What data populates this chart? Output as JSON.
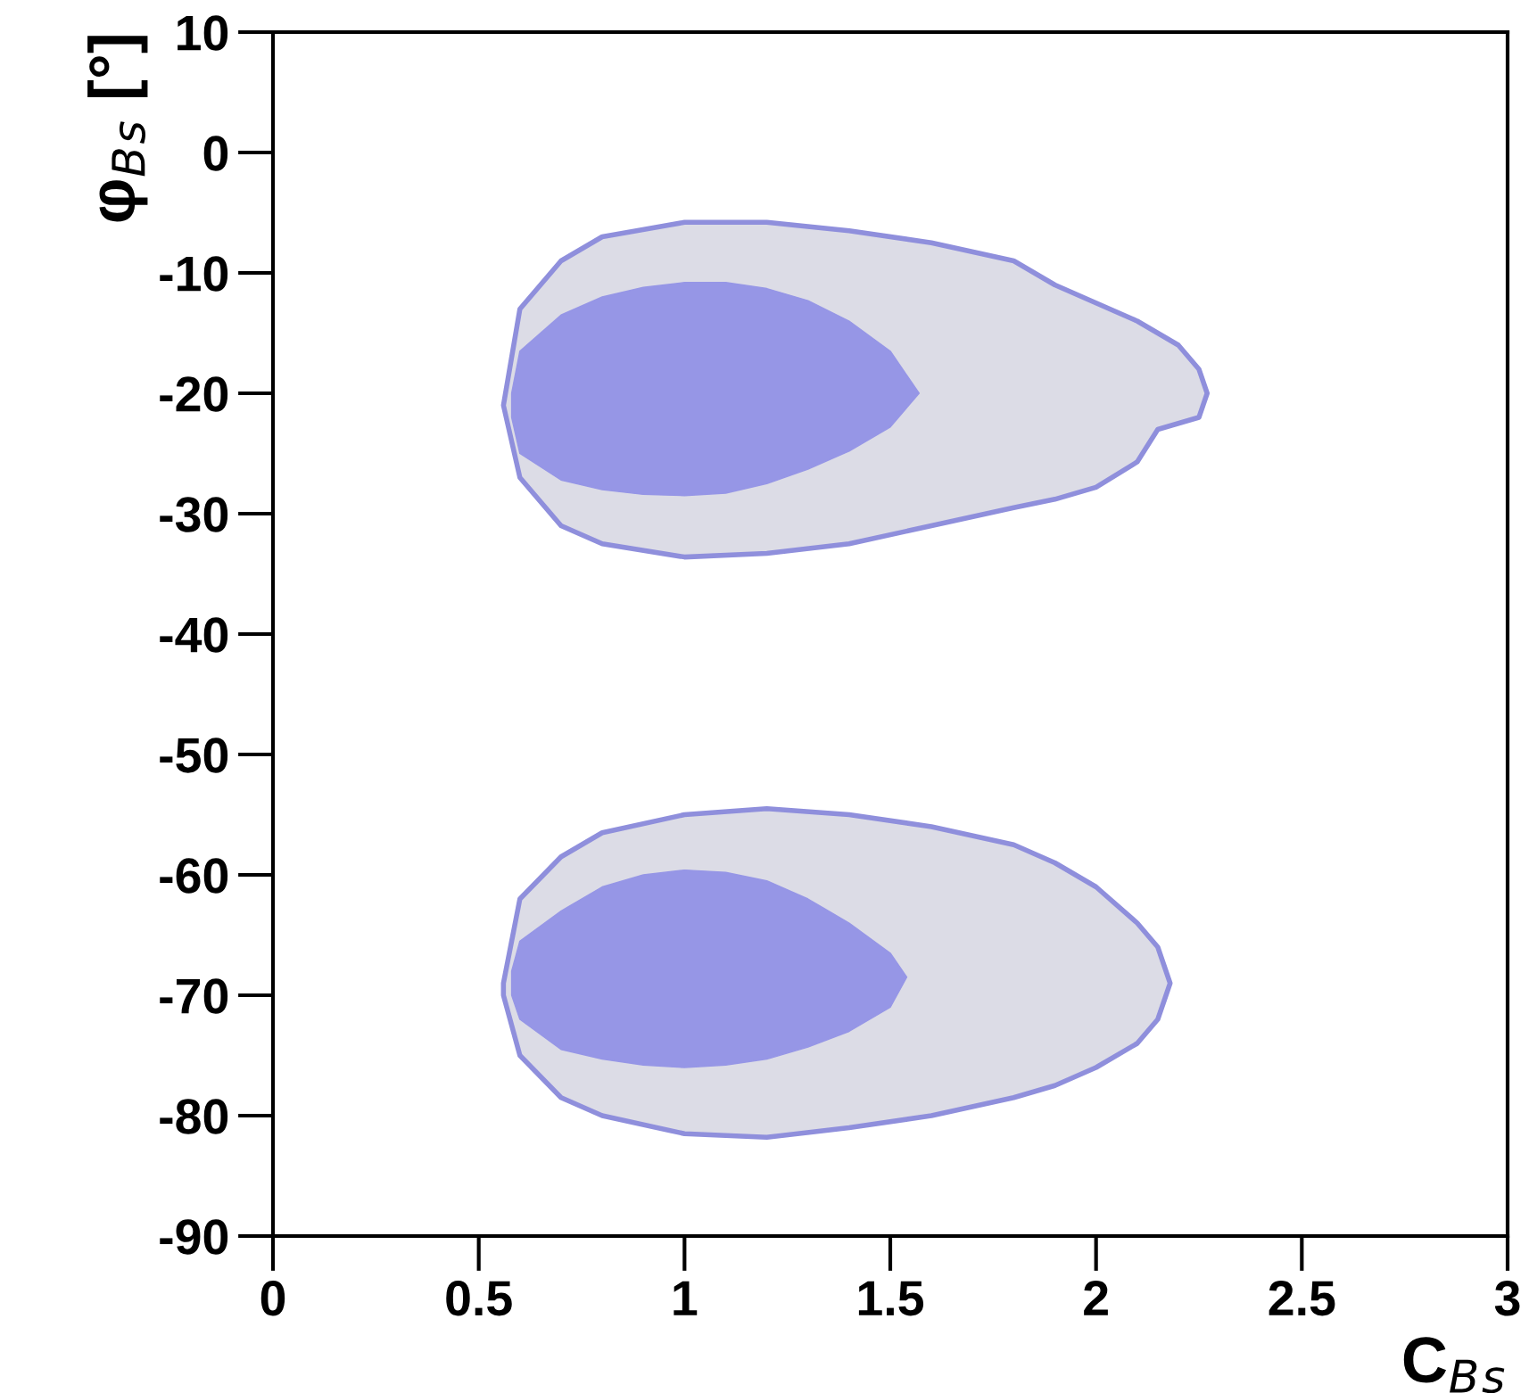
{
  "chart_data": {
    "type": "area",
    "xlabel": "C$_{B}$$_{s}$",
    "ylabel": "φ$_{B}$$_{s}$ [°]",
    "xlim": [
      0,
      3
    ],
    "ylim": [
      -90,
      10
    ],
    "xticks": [
      0,
      0.5,
      1,
      1.5,
      2,
      2.5,
      3
    ],
    "yticks": [
      -90,
      -80,
      -70,
      -60,
      -50,
      -40,
      -30,
      -20,
      -10,
      0,
      10
    ],
    "grid": false,
    "legend": false,
    "series": [
      {
        "color": "#dcdce6",
        "x": [
          0.56,
          0.6,
          0.7,
          0.8,
          1.0,
          1.2,
          1.4,
          1.6,
          1.8,
          1.9,
          2.0,
          2.1,
          2.15,
          2.2,
          2.25,
          2.27,
          2.25,
          2.2,
          2.15,
          2.1,
          2.0,
          1.9,
          1.8,
          1.6,
          1.4,
          1.2,
          1.0,
          0.8,
          0.7,
          0.6
        ],
        "values": [
          -21,
          -13,
          -9,
          -7,
          -5.8,
          -5.8,
          -6.5,
          -7.5,
          -9,
          -11,
          -12.5,
          -14,
          -15,
          -16,
          -18,
          -20,
          -22,
          -22.5,
          -23,
          -25.7,
          -27.8,
          -28.8,
          -29.5,
          -31,
          -32.5,
          -33.3,
          -33.6,
          -32.5,
          -31,
          -27
        ]
      },
      {
        "color": "#9696e6",
        "x": [
          0.58,
          0.6,
          0.7,
          0.8,
          0.9,
          1.0,
          1.1,
          1.2,
          1.3,
          1.4,
          1.5,
          1.57,
          1.5,
          1.4,
          1.3,
          1.2,
          1.1,
          1.0,
          0.9,
          0.8,
          0.7,
          0.6,
          0.58
        ],
        "values": [
          -20,
          -16.5,
          -13.5,
          -12,
          -11.2,
          -10.8,
          -10.8,
          -11.3,
          -12.3,
          -14,
          -16.5,
          -20,
          -22.8,
          -24.8,
          -26.3,
          -27.5,
          -28.3,
          -28.5,
          -28.4,
          -28,
          -27.2,
          -25,
          -22
        ]
      },
      {
        "color": "#dcdce6",
        "x": [
          0.56,
          0.6,
          0.7,
          0.8,
          1.0,
          1.2,
          1.4,
          1.6,
          1.8,
          1.9,
          2.0,
          2.1,
          2.15,
          2.18,
          2.15,
          2.1,
          2.0,
          1.9,
          1.8,
          1.6,
          1.4,
          1.2,
          1.0,
          0.8,
          0.7,
          0.6,
          0.56
        ],
        "values": [
          -69,
          -62,
          -58.5,
          -56.5,
          -55,
          -54.5,
          -55,
          -56,
          -57.5,
          -59,
          -61,
          -64,
          -66,
          -69,
          -72,
          -74,
          -76,
          -77.5,
          -78.5,
          -80,
          -81,
          -81.8,
          -81.5,
          -80,
          -78.5,
          -75,
          -70
        ]
      },
      {
        "color": "#9696e6",
        "x": [
          0.58,
          0.6,
          0.7,
          0.8,
          0.9,
          1.0,
          1.1,
          1.2,
          1.3,
          1.4,
          1.5,
          1.54,
          1.5,
          1.4,
          1.3,
          1.2,
          1.1,
          1.0,
          0.9,
          0.8,
          0.7,
          0.6,
          0.58
        ],
        "values": [
          -68,
          -65.5,
          -63,
          -61,
          -60,
          -59.6,
          -59.8,
          -60.5,
          -62,
          -64,
          -66.5,
          -68.5,
          -71,
          -73,
          -74.3,
          -75.3,
          -75.8,
          -76,
          -75.8,
          -75.3,
          -74.5,
          -72,
          -70
        ]
      }
    ]
  }
}
